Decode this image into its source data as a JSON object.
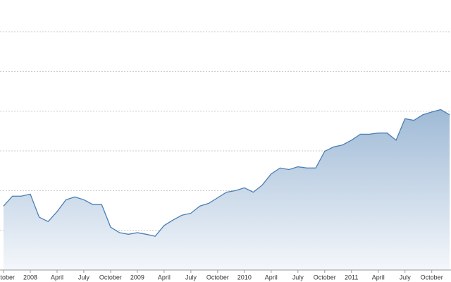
{
  "chart_data": {
    "type": "area",
    "x": [
      "2007-10",
      "2007-11",
      "2007-12",
      "2008-01",
      "2008-02",
      "2008-03",
      "2008-04",
      "2008-05",
      "2008-06",
      "2008-07",
      "2008-08",
      "2008-09",
      "2008-10",
      "2008-11",
      "2008-12",
      "2009-01",
      "2009-02",
      "2009-03",
      "2009-04",
      "2009-05",
      "2009-06",
      "2009-07",
      "2009-08",
      "2009-09",
      "2009-10",
      "2009-11",
      "2009-12",
      "2010-01",
      "2010-02",
      "2010-03",
      "2010-04",
      "2010-05",
      "2010-06",
      "2010-07",
      "2010-08",
      "2010-09",
      "2010-10",
      "2010-11",
      "2010-12",
      "2011-01",
      "2011-02",
      "2011-03",
      "2011-04",
      "2011-05",
      "2011-06",
      "2011-07",
      "2011-08",
      "2011-09",
      "2011-10",
      "2011-11",
      "2011-12"
    ],
    "values": [
      1.61,
      1.86,
      1.86,
      1.91,
      1.33,
      1.22,
      1.47,
      1.77,
      1.84,
      1.77,
      1.65,
      1.65,
      1.08,
      0.94,
      0.9,
      0.94,
      0.9,
      0.85,
      1.12,
      1.26,
      1.38,
      1.43,
      1.61,
      1.68,
      1.82,
      1.96,
      2.0,
      2.07,
      1.96,
      2.14,
      2.42,
      2.57,
      2.53,
      2.6,
      2.57,
      2.57,
      2.99,
      3.1,
      3.15,
      3.27,
      3.42,
      3.42,
      3.45,
      3.45,
      3.27,
      3.81,
      3.77,
      3.91,
      3.98,
      4.04,
      3.91
    ],
    "color": "#4a7fb5",
    "xlim": [
      "2007-10",
      "2011-12"
    ],
    "xticks": [
      {
        "value": "2007-10",
        "label": "October"
      },
      {
        "value": "2008-01",
        "label": "2008"
      },
      {
        "value": "2008-04",
        "label": "April"
      },
      {
        "value": "2008-07",
        "label": "July"
      },
      {
        "value": "2008-10",
        "label": "October"
      },
      {
        "value": "2009-01",
        "label": "2009"
      },
      {
        "value": "2009-04",
        "label": "April"
      },
      {
        "value": "2009-07",
        "label": "July"
      },
      {
        "value": "2009-10",
        "label": "October"
      },
      {
        "value": "2010-01",
        "label": "2010"
      },
      {
        "value": "2010-04",
        "label": "April"
      },
      {
        "value": "2010-07",
        "label": "July"
      },
      {
        "value": "2010-10",
        "label": "October"
      },
      {
        "value": "2011-01",
        "label": "2011"
      },
      {
        "value": "2011-04",
        "label": "April"
      },
      {
        "value": "2011-07",
        "label": "July"
      },
      {
        "value": "2011-10",
        "label": "October"
      }
    ],
    "ylim": [
      0,
      6.8
    ],
    "yticks": [
      1,
      2,
      3,
      4,
      5,
      6
    ],
    "grid": true
  }
}
